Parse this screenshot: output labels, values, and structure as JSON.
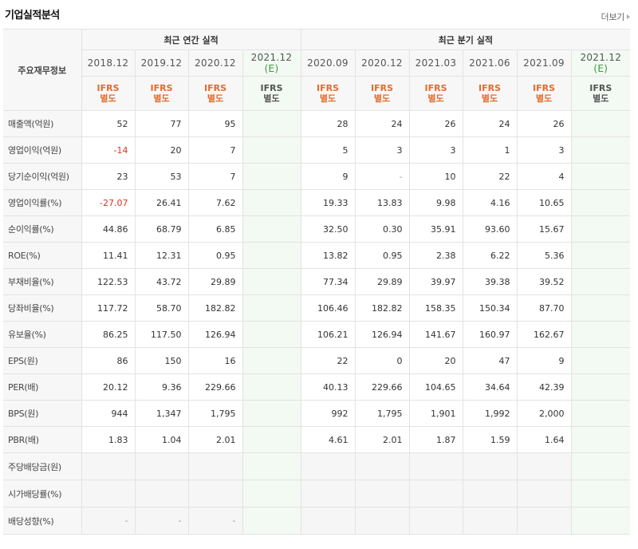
{
  "header": {
    "title": "기업실적분석",
    "more_label": "더보기"
  },
  "table": {
    "corner_label": "주요재무정보",
    "groups": {
      "annual": "최근 연간 실적",
      "quarterly": "최근 분기 실적"
    },
    "annual_periods": [
      "2018.12",
      "2019.12",
      "2020.12",
      "2021.12"
    ],
    "quarter_periods": [
      "2020.09",
      "2020.12",
      "2021.03",
      "2021.06",
      "2021.09",
      "2021.12"
    ],
    "estimate_mark": "(E)",
    "ifrs_top": "IFRS",
    "ifrs_bottom": "별도",
    "rows": [
      {
        "label": "매출액(억원)",
        "values": [
          "52",
          "77",
          "95",
          "",
          "28",
          "24",
          "26",
          "24",
          "26",
          ""
        ]
      },
      {
        "label": "영업이익(억원)",
        "values": [
          "-14",
          "20",
          "7",
          "",
          "5",
          "3",
          "3",
          "1",
          "3",
          ""
        ]
      },
      {
        "label": "당기순이익(억원)",
        "values": [
          "23",
          "53",
          "7",
          "",
          "9",
          "-",
          "10",
          "22",
          "4",
          ""
        ]
      },
      {
        "label": "영업이익률(%)",
        "values": [
          "-27.07",
          "26.41",
          "7.62",
          "",
          "19.33",
          "13.83",
          "9.98",
          "4.16",
          "10.65",
          ""
        ]
      },
      {
        "label": "순이익률(%)",
        "values": [
          "44.86",
          "68.79",
          "6.85",
          "",
          "32.50",
          "0.30",
          "35.91",
          "93.60",
          "15.67",
          ""
        ]
      },
      {
        "label": "ROE(%)",
        "values": [
          "11.41",
          "12.31",
          "0.95",
          "",
          "13.82",
          "0.95",
          "2.38",
          "6.22",
          "5.36",
          ""
        ]
      },
      {
        "label": "부채비율(%)",
        "values": [
          "122.53",
          "43.72",
          "29.89",
          "",
          "77.34",
          "29.89",
          "39.97",
          "39.38",
          "39.52",
          ""
        ]
      },
      {
        "label": "당좌비율(%)",
        "values": [
          "117.72",
          "58.70",
          "182.82",
          "",
          "106.46",
          "182.82",
          "158.35",
          "150.34",
          "87.70",
          ""
        ]
      },
      {
        "label": "유보율(%)",
        "values": [
          "86.25",
          "117.50",
          "126.94",
          "",
          "106.21",
          "126.94",
          "141.67",
          "160.97",
          "162.67",
          ""
        ]
      },
      {
        "label": "EPS(원)",
        "values": [
          "86",
          "150",
          "16",
          "",
          "22",
          "0",
          "20",
          "47",
          "9",
          ""
        ]
      },
      {
        "label": "PER(배)",
        "values": [
          "20.12",
          "9.36",
          "229.66",
          "",
          "40.13",
          "229.66",
          "104.65",
          "34.64",
          "42.39",
          ""
        ]
      },
      {
        "label": "BPS(원)",
        "values": [
          "944",
          "1,347",
          "1,795",
          "",
          "992",
          "1,795",
          "1,901",
          "1,992",
          "2,000",
          ""
        ]
      },
      {
        "label": "PBR(배)",
        "values": [
          "1.83",
          "1.04",
          "2.01",
          "",
          "4.61",
          "2.01",
          "1.87",
          "1.59",
          "1.64",
          ""
        ]
      },
      {
        "label": "주당배당금(원)",
        "values": [
          "",
          "",
          "",
          "",
          "",
          "",
          "",
          "",
          "",
          ""
        ],
        "dividend": true
      },
      {
        "label": "시가배당률(%)",
        "values": [
          "",
          "",
          "",
          "",
          "",
          "",
          "",
          "",
          "",
          ""
        ],
        "dividend": true
      },
      {
        "label": "배당성향(%)",
        "values": [
          "-",
          "-",
          "-",
          "",
          "",
          "",
          "",
          "",
          "",
          ""
        ],
        "dividend": true
      }
    ]
  },
  "colors": {
    "ifrs": "#e36b2c",
    "negative": "#e0321e",
    "estimate": "#3c9a3c",
    "estimate_bg": "#f3f9f3"
  }
}
